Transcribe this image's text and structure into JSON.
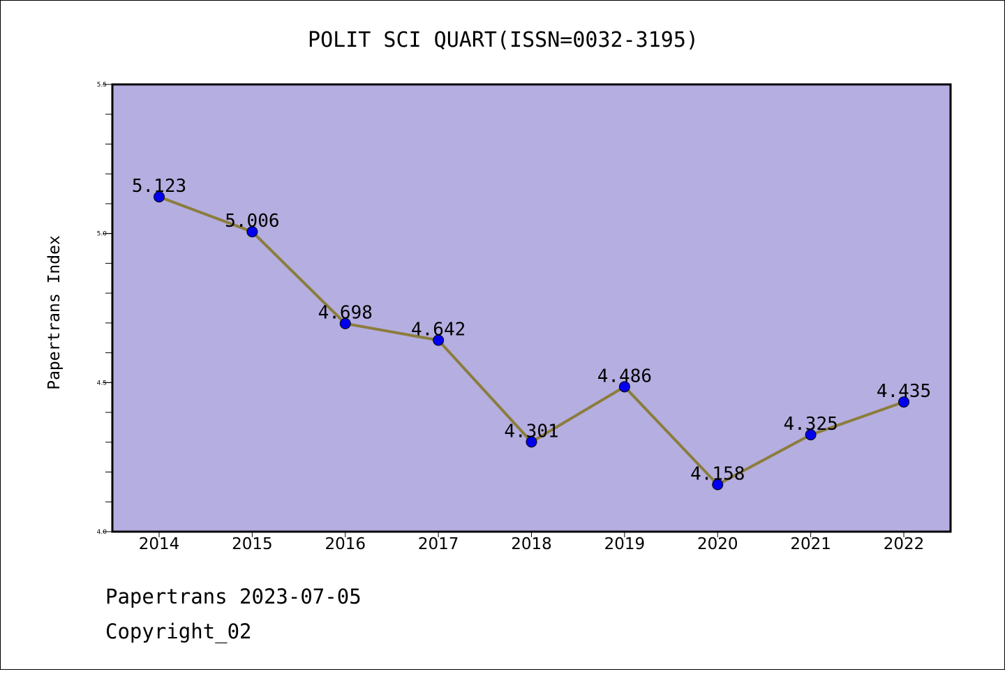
{
  "chart_data": {
    "type": "line",
    "title": "POLIT SCI QUART(ISSN=0032-3195)",
    "xlabel": "",
    "ylabel": "Papertrans Index",
    "categories": [
      "2014",
      "2015",
      "2016",
      "2017",
      "2018",
      "2019",
      "2020",
      "2021",
      "2022"
    ],
    "values": [
      5.123,
      5.006,
      4.698,
      4.642,
      4.301,
      4.486,
      4.158,
      4.325,
      4.435
    ],
    "data_labels": [
      "5.123",
      "5.006",
      "4.698",
      "4.642",
      "4.301",
      "4.486",
      "4.158",
      "4.325",
      "4.435"
    ],
    "ylim": [
      4.0,
      5.5
    ],
    "yticks": [
      4.0,
      4.5,
      5.0,
      5.5
    ],
    "ytick_labels": [
      "4.0",
      "4.5",
      "5.0",
      "5.5"
    ],
    "grid": false,
    "colors": {
      "plot_background": "#b5aee1",
      "line": "#8b7d3c",
      "marker": "#0000ee"
    }
  },
  "footer": {
    "line1": "Papertrans 2023-07-05",
    "line2": "Copyright_02"
  }
}
